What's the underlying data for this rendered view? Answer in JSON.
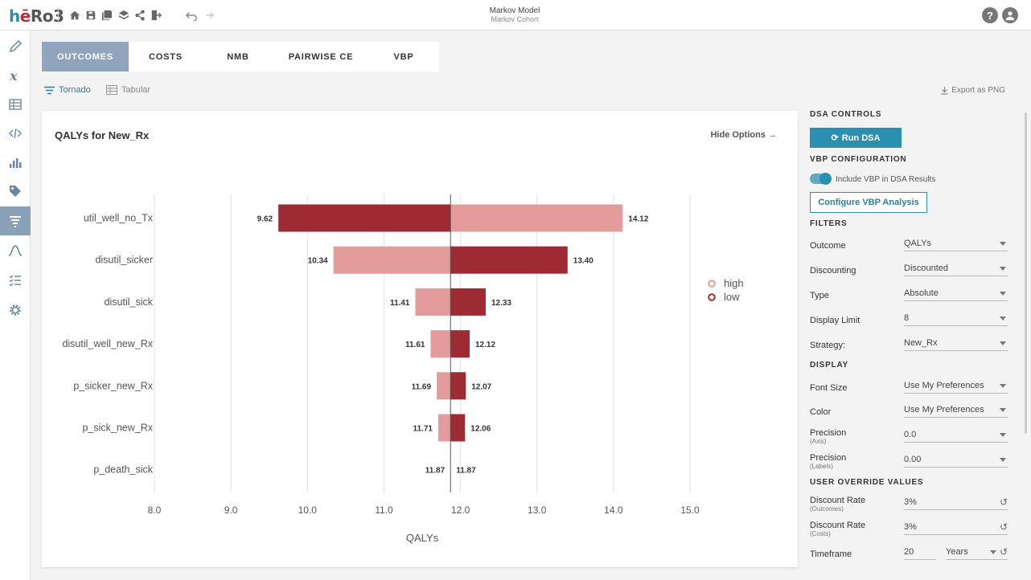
{
  "logo": {
    "p1": "h",
    "p2": "ē",
    "p3": "Ro3"
  },
  "header": {
    "title": "Markov Model",
    "subtitle": "Markov Cohort",
    "help": "?"
  },
  "tabs": [
    {
      "label": "OUTCOMES"
    },
    {
      "label": "COSTS"
    },
    {
      "label": "NMB"
    },
    {
      "label": "PAIRWISE CE"
    },
    {
      "label": "VBP"
    }
  ],
  "view": {
    "tornado": "Tornado",
    "tabular": "Tabular",
    "export": "Export as PNG"
  },
  "panel": {
    "title": "QALYs for New_Rx",
    "hide_options": "Hide Options"
  },
  "chart_data": {
    "type": "bar",
    "orientation": "horizontal",
    "variant": "tornado",
    "title": "QALYs for New_Rx",
    "xlabel": "QALYs",
    "xlim": [
      8.0,
      15.0
    ],
    "xticks": [
      "8.0",
      "9.0",
      "10.0",
      "11.0",
      "12.0",
      "13.0",
      "14.0",
      "15.0"
    ],
    "xtick_values": [
      8,
      9,
      10,
      11,
      12,
      13,
      14,
      15
    ],
    "base": 11.87,
    "grid": true,
    "legend_position": "right",
    "series": [
      {
        "name": "high",
        "color": "#e49b9c"
      },
      {
        "name": "low",
        "color": "#9e2b34"
      }
    ],
    "categories": [
      "util_well_no_Tx",
      "disutil_sicker",
      "disutil_sick",
      "disutil_well_new_Rx",
      "p_sicker_new_Rx",
      "p_sick_new_Rx",
      "p_death_sick"
    ],
    "bars": [
      {
        "left": 9.62,
        "right": 14.12,
        "left_label": "9.62",
        "right_label": "14.12",
        "left_series": "low"
      },
      {
        "left": 10.34,
        "right": 13.4,
        "left_label": "10.34",
        "right_label": "13.40",
        "left_series": "high"
      },
      {
        "left": 11.41,
        "right": 12.33,
        "left_label": "11.41",
        "right_label": "12.33",
        "left_series": "high"
      },
      {
        "left": 11.61,
        "right": 12.12,
        "left_label": "11.61",
        "right_label": "12.12",
        "left_series": "high"
      },
      {
        "left": 11.69,
        "right": 12.07,
        "left_label": "11.69",
        "right_label": "12.07",
        "left_series": "high"
      },
      {
        "left": 11.71,
        "right": 12.06,
        "left_label": "11.71",
        "right_label": "12.06",
        "left_series": "high"
      },
      {
        "left": 11.87,
        "right": 11.87,
        "left_label": "11.87",
        "right_label": "11.87",
        "left_series": "high"
      }
    ]
  },
  "controls": {
    "dsa_head": "DSA CONTROLS",
    "run": "Run DSA",
    "vbp_head": "VBP CONFIGURATION",
    "include_vbp": "Include VBP in DSA Results",
    "configure_vbp": "Configure VBP Analysis",
    "filters_head": "FILTERS",
    "outcome_label": "Outcome",
    "outcome_value": "QALYs",
    "discounting_label": "Discounting",
    "discounting_value": "Discounted",
    "type_label": "Type",
    "type_value": "Absolute",
    "limit_label": "Display Limit",
    "limit_value": "8",
    "strategy_label": "Strategy:",
    "strategy_value": "New_Rx",
    "display_head": "DISPLAY",
    "font_label": "Font Size",
    "font_value": "Use My Preferences",
    "color_label": "Color",
    "color_value": "Use My Preferences",
    "prec_axis_label": "Precision",
    "prec_axis_sub": "(Axis)",
    "prec_axis_value": "0.0",
    "prec_labels_label": "Precision",
    "prec_labels_sub": "(Labels)",
    "prec_labels_value": "0.00",
    "override_head": "USER OVERRIDE VALUES",
    "dr_out_label": "Discount Rate",
    "dr_out_sub": "(Outcomes)",
    "dr_out_value": "3%",
    "dr_cost_label": "Discount Rate",
    "dr_cost_sub": "(Costs)",
    "dr_cost_value": "3%",
    "timeframe_label": "Timeframe",
    "timeframe_value": "20",
    "timeframe_unit": "Years"
  }
}
